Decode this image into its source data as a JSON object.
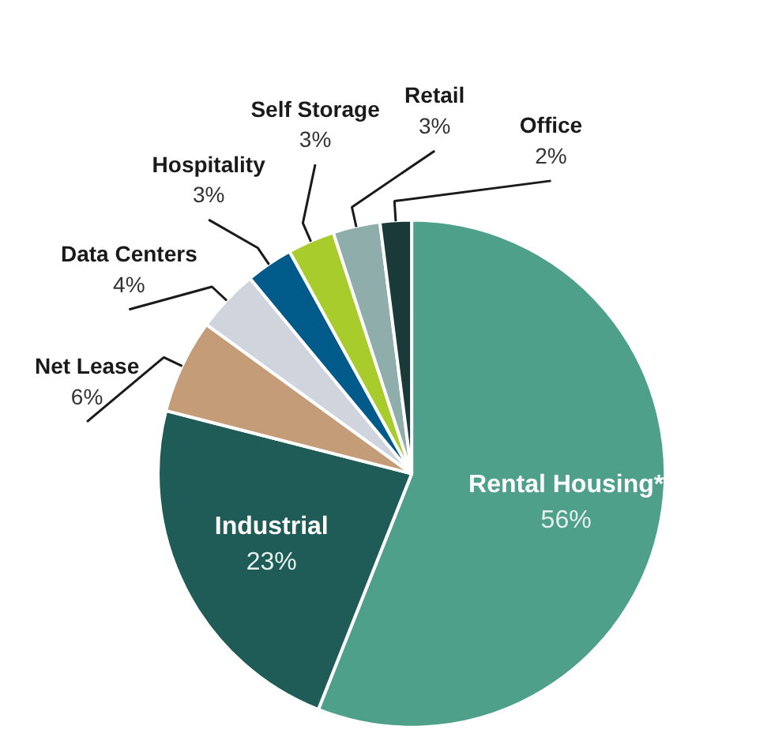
{
  "chart_data": {
    "type": "pie",
    "categories": [
      "Rental Housing*",
      "Industrial",
      "Net Lease",
      "Data Centers",
      "Hospitality",
      "Self Storage",
      "Retail",
      "Office"
    ],
    "values": [
      56,
      23,
      6,
      4,
      3,
      3,
      3,
      2
    ],
    "value_labels": [
      "56%",
      "23%",
      "6%",
      "4%",
      "3%",
      "3%",
      "3%",
      "2%"
    ],
    "colors": [
      "#4fa08a",
      "#1f5c58",
      "#c49c78",
      "#d0d4dc",
      "#005b8a",
      "#a8cc2c",
      "#8fadab",
      "#1a3a3a"
    ]
  }
}
